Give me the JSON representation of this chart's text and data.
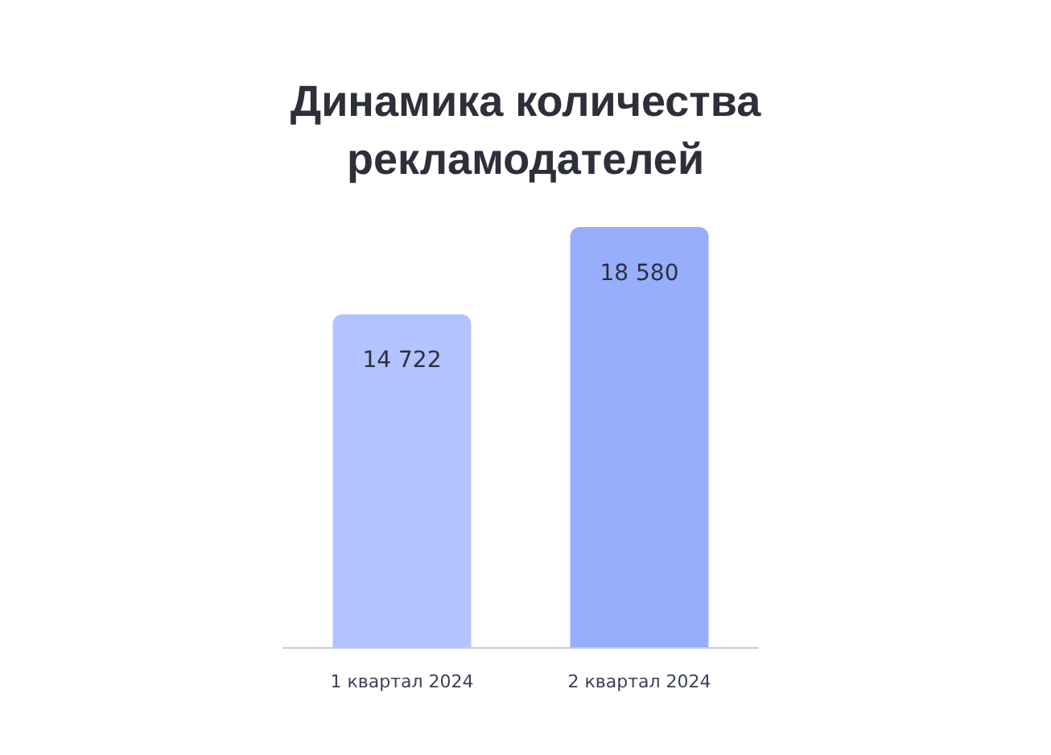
{
  "chart_data": {
    "type": "bar",
    "title": "Динамика количества\nрекламодателей",
    "categories": [
      "1 квартал 2024",
      "2 квартал 2024"
    ],
    "values": [
      14722,
      18580
    ],
    "colors": [
      "#b3c3ff",
      "#97aefc"
    ],
    "data_labels": true,
    "value_labels": [
      "14 722",
      "18 580"
    ]
  }
}
